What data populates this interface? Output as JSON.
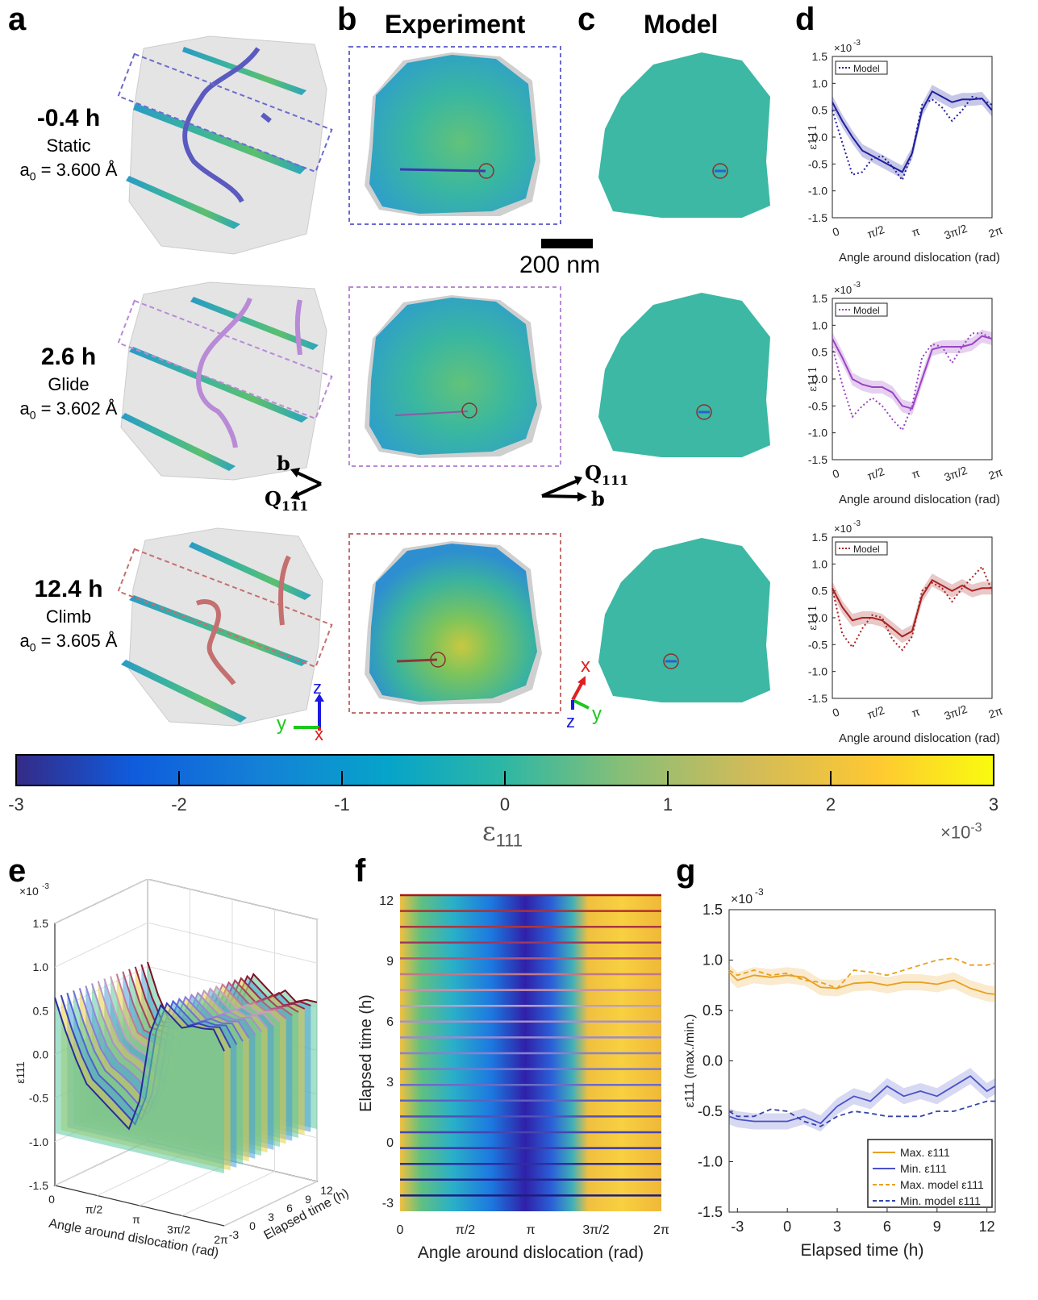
{
  "panel_labels": {
    "a": "a",
    "b": "b",
    "c": "c",
    "d": "d",
    "e": "e",
    "f": "f",
    "g": "g"
  },
  "column_titles": {
    "experiment": "Experiment",
    "model": "Model"
  },
  "scale_bar": "200 nm",
  "rows": [
    {
      "time": "-0.4 h",
      "mechanism": "Static",
      "a0_prefix": "a",
      "a0_sub": "0",
      "a0_value": " = 3.600 Å",
      "color": "#4a4aa8",
      "box": "#6b6bd0"
    },
    {
      "time": "2.6 h",
      "mechanism": "Glide",
      "a0_prefix": "a",
      "a0_sub": "0",
      "a0_value": " = 3.602 Å",
      "color": "#a864c8",
      "box": "#b98ad6"
    },
    {
      "time": "12.4 h",
      "mechanism": "Climb",
      "a0_prefix": "a",
      "a0_sub": "0",
      "a0_value": " = 3.605 Å",
      "color": "#b24444",
      "box": "#c47070"
    }
  ],
  "vectors": {
    "b": "b",
    "q": "Q",
    "q_sub": "111"
  },
  "axes_labels": {
    "x": "x",
    "y": "y",
    "z": "z"
  },
  "colorbar": {
    "ticks": [
      "-3",
      "-2",
      "-1",
      "0",
      "1",
      "2",
      "3"
    ],
    "label": "ε",
    "label_sub": "111",
    "multiplier": "×10",
    "multiplier_exp": "-3"
  },
  "panel_d": {
    "exp_label": "×10",
    "exp_sup": "-3",
    "yticks": [
      "1.5",
      "1.0",
      "0.5",
      "0.0",
      "-0.5",
      "-1.0",
      "-1.5"
    ],
    "xticks": [
      "0",
      "π/2",
      "π",
      "3π/2",
      "2π"
    ],
    "xlabel": "Angle around dislocation (rad)",
    "ylabel": "ε111",
    "legend": "Model"
  },
  "panel_e": {
    "exp_label": "×10",
    "exp_sup": "-3",
    "zticks": [
      "1.5",
      "1.0",
      "0.5",
      "0.0",
      "-0.5",
      "-1.0",
      "-1.5"
    ],
    "xticks": [
      "0",
      "π/2",
      "π",
      "3π/2",
      "2π"
    ],
    "yticks": [
      "-3",
      "0",
      "3",
      "6",
      "9",
      "12"
    ],
    "xlabel": "Angle around dislocation (rad)",
    "ylabel": "Elapsed time (h)",
    "zlabel": "ε111"
  },
  "panel_f": {
    "yticks": [
      "12",
      "9",
      "6",
      "3",
      "0",
      "-3"
    ],
    "xticks": [
      "0",
      "π/2",
      "π",
      "3π/2",
      "2π"
    ],
    "xlabel": "Angle around dislocation (rad)",
    "ylabel": "Elapsed time (h)"
  },
  "panel_g": {
    "exp_label": "×10",
    "exp_sup": "-3",
    "ylabel": "ε111 (max./min.)",
    "xlabel": "Elapsed time (h)",
    "legend": [
      "Max. ε111",
      "Min. ε111",
      "Max. model ε111",
      "Min. model ε111"
    ]
  },
  "chart_data": [
    {
      "type": "line",
      "title": "d (-0.4 h)",
      "xlabel": "Angle around dislocation (rad)",
      "ylabel": "ε111 (×10^-3)",
      "ylim": [
        -1.5,
        1.5
      ],
      "x": [
        0,
        0.39,
        0.79,
        1.18,
        1.57,
        1.96,
        2.36,
        2.75,
        3.14,
        3.53,
        3.93,
        4.32,
        4.71,
        5.11,
        5.5,
        5.89,
        6.28
      ],
      "series": [
        {
          "name": "Experiment",
          "color": "#1f1f9e",
          "values": [
            0.65,
            0.3,
            0.0,
            -0.25,
            -0.35,
            -0.45,
            -0.55,
            -0.65,
            -0.3,
            0.5,
            0.85,
            0.75,
            0.65,
            0.7,
            0.7,
            0.72,
            0.5
          ]
        },
        {
          "name": "Model",
          "color": "#1f1f9e",
          "values": [
            0.5,
            -0.1,
            -0.7,
            -0.65,
            -0.4,
            -0.35,
            -0.55,
            -0.8,
            -0.3,
            0.6,
            0.7,
            0.55,
            0.3,
            0.5,
            0.75,
            0.7,
            0.6
          ]
        }
      ]
    },
    {
      "type": "line",
      "title": "d (2.6 h)",
      "xlabel": "Angle around dislocation (rad)",
      "ylabel": "ε111 (×10^-3)",
      "ylim": [
        -1.5,
        1.5
      ],
      "x": [
        0,
        0.39,
        0.79,
        1.18,
        1.57,
        1.96,
        2.36,
        2.75,
        3.14,
        3.53,
        3.93,
        4.32,
        4.71,
        5.11,
        5.5,
        5.89,
        6.28
      ],
      "series": [
        {
          "name": "Experiment",
          "color": "#9a44c4",
          "values": [
            0.75,
            0.4,
            0.0,
            -0.1,
            -0.15,
            -0.15,
            -0.25,
            -0.5,
            -0.55,
            0.0,
            0.55,
            0.6,
            0.6,
            0.6,
            0.65,
            0.8,
            0.75
          ]
        },
        {
          "name": "Model",
          "color": "#9a44c4",
          "values": [
            0.6,
            -0.1,
            -0.7,
            -0.5,
            -0.35,
            -0.5,
            -0.75,
            -0.95,
            -0.5,
            0.4,
            0.65,
            0.6,
            0.3,
            0.6,
            0.85,
            0.85,
            0.75
          ]
        }
      ]
    },
    {
      "type": "line",
      "title": "d (12.4 h)",
      "xlabel": "Angle around dislocation (rad)",
      "ylabel": "ε111 (×10^-3)",
      "ylim": [
        -1.5,
        1.5
      ],
      "x": [
        0,
        0.39,
        0.79,
        1.18,
        1.57,
        1.96,
        2.36,
        2.75,
        3.14,
        3.53,
        3.93,
        4.32,
        4.71,
        5.11,
        5.5,
        5.89,
        6.28
      ],
      "series": [
        {
          "name": "Experiment",
          "color": "#a82222",
          "values": [
            0.55,
            0.2,
            -0.05,
            0.0,
            0.0,
            -0.05,
            -0.2,
            -0.35,
            -0.25,
            0.4,
            0.7,
            0.6,
            0.5,
            0.6,
            0.5,
            0.55,
            0.55
          ]
        },
        {
          "name": "Model",
          "color": "#a82222",
          "values": [
            0.55,
            -0.3,
            -0.55,
            -0.2,
            0.05,
            0.0,
            -0.4,
            -0.6,
            -0.35,
            0.5,
            0.65,
            0.55,
            0.3,
            0.55,
            0.75,
            0.95,
            0.5
          ]
        }
      ]
    },
    {
      "type": "line",
      "title": "g",
      "xlabel": "Elapsed time (h)",
      "ylabel": "ε111 (max./min.) (×10^-3)",
      "ylim": [
        -1.5,
        1.5
      ],
      "xlim": [
        -3.5,
        12.5
      ],
      "x": [
        -3.5,
        -3,
        -2,
        -1,
        0,
        1,
        2,
        3,
        4,
        5,
        6,
        7,
        8,
        9,
        10,
        11,
        12,
        12.5
      ],
      "series": [
        {
          "name": "Max. ε111",
          "color": "#e8a020",
          "values": [
            0.88,
            0.8,
            0.85,
            0.83,
            0.85,
            0.83,
            0.73,
            0.72,
            0.77,
            0.78,
            0.75,
            0.78,
            0.78,
            0.76,
            0.8,
            0.72,
            0.67,
            0.66
          ]
        },
        {
          "name": "Min. ε111",
          "color": "#4a52c8",
          "values": [
            -0.55,
            -0.58,
            -0.6,
            -0.6,
            -0.6,
            -0.55,
            -0.62,
            -0.45,
            -0.35,
            -0.4,
            -0.25,
            -0.35,
            -0.3,
            -0.35,
            -0.25,
            -0.15,
            -0.3,
            -0.25
          ]
        },
        {
          "name": "Max. model ε111",
          "color": "#e8a020",
          "values": [
            0.9,
            0.85,
            0.9,
            0.85,
            0.87,
            0.8,
            0.78,
            0.72,
            0.9,
            0.88,
            0.85,
            0.9,
            0.95,
            1.0,
            1.02,
            0.95,
            0.95,
            0.97
          ]
        },
        {
          "name": "Min. model ε111",
          "color": "#3344a8",
          "values": [
            -0.5,
            -0.55,
            -0.55,
            -0.48,
            -0.5,
            -0.6,
            -0.65,
            -0.55,
            -0.5,
            -0.52,
            -0.55,
            -0.55,
            -0.55,
            -0.5,
            -0.5,
            -0.45,
            -0.4,
            -0.4
          ]
        }
      ]
    }
  ]
}
